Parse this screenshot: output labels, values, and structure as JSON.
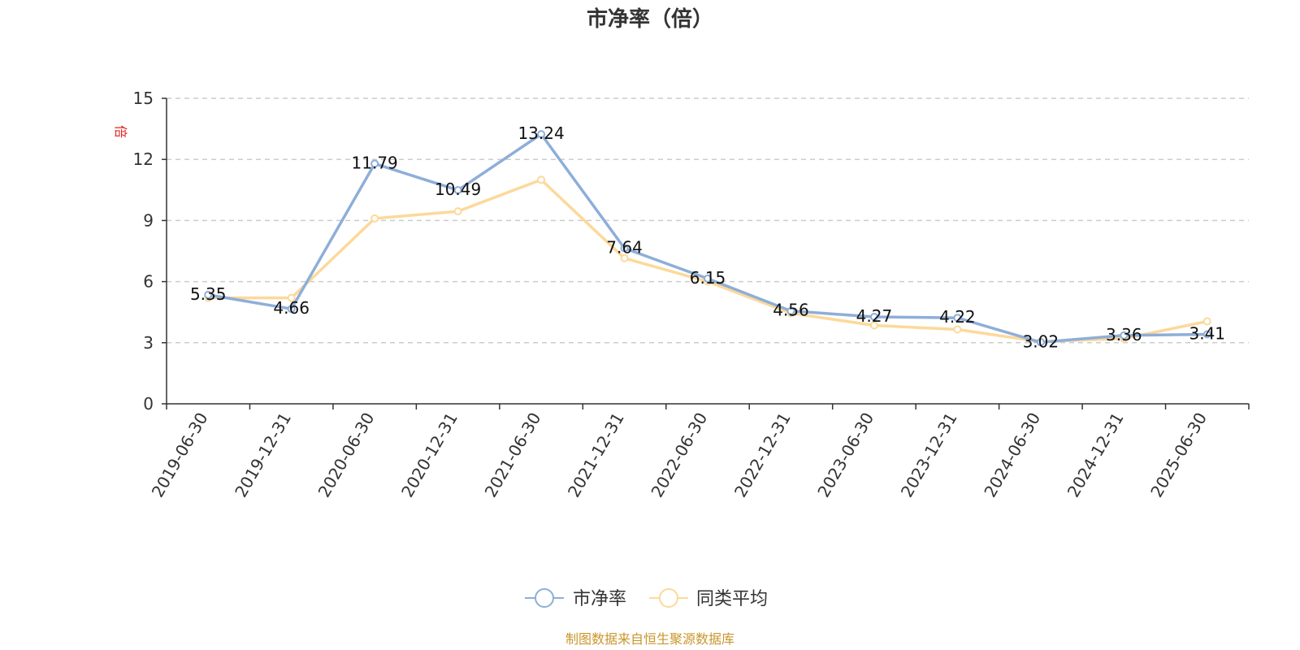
{
  "chart_data": {
    "type": "line",
    "title": "市净率（倍）",
    "ylabel": "倍",
    "xlabel": "",
    "ylim": [
      0,
      15
    ],
    "yticks": [
      0,
      3,
      6,
      9,
      12,
      15
    ],
    "grid": true,
    "legend_position": "bottom",
    "categories": [
      "2019-06-30",
      "2019-12-31",
      "2020-06-30",
      "2020-12-31",
      "2021-06-30",
      "2021-12-31",
      "2022-06-30",
      "2022-12-31",
      "2023-06-30",
      "2023-12-31",
      "2024-06-30",
      "2024-12-31",
      "2025-06-30"
    ],
    "series": [
      {
        "name": "市净率",
        "color": "#8eaed9",
        "values": [
          5.35,
          4.66,
          11.79,
          10.49,
          13.24,
          7.64,
          6.15,
          4.56,
          4.27,
          4.22,
          3.02,
          3.36,
          3.41
        ],
        "labels": [
          "5.35",
          "4.66",
          "11.79",
          "10.49",
          "13.24",
          "7.64",
          "6.15",
          "4.56",
          "4.27",
          "4.22",
          "3.02",
          "3.36",
          "3.41"
        ]
      },
      {
        "name": "同类平均",
        "color": "#fcd99a",
        "values": [
          5.2,
          5.2,
          9.1,
          9.45,
          11.0,
          7.15,
          6.0,
          4.45,
          3.85,
          3.65,
          3.05,
          3.2,
          4.05
        ]
      }
    ]
  },
  "source_note": "制图数据来自恒生聚源数据库"
}
